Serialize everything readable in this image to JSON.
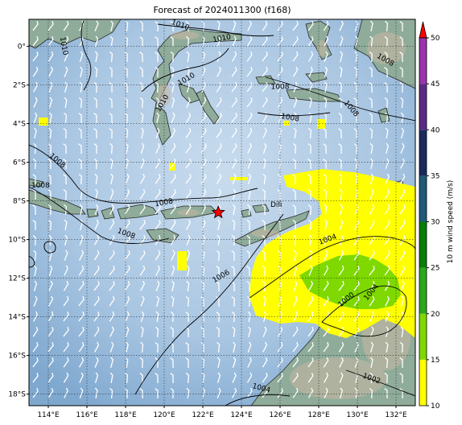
{
  "title": "Forecast of 2024011300 (f168)",
  "map": {
    "lon_min": 113,
    "lon_max": 133,
    "lat_min": -18.6,
    "lat_max": 1.4,
    "lon_ticks": [
      {
        "value": 114,
        "label": "114°E"
      },
      {
        "value": 116,
        "label": "116°E"
      },
      {
        "value": 118,
        "label": "118°E"
      },
      {
        "value": 120,
        "label": "120°E"
      },
      {
        "value": 122,
        "label": "122°E"
      },
      {
        "value": 124,
        "label": "124°E"
      },
      {
        "value": 126,
        "label": "126°E"
      },
      {
        "value": 128,
        "label": "128°E"
      },
      {
        "value": 130,
        "label": "130°E"
      },
      {
        "value": 132,
        "label": "132°E"
      }
    ],
    "lat_ticks": [
      {
        "value": 0,
        "label": "0°"
      },
      {
        "value": -2,
        "label": "2°S"
      },
      {
        "value": -4,
        "label": "4°S"
      },
      {
        "value": -6,
        "label": "6°S"
      },
      {
        "value": -8,
        "label": "8°S"
      },
      {
        "value": -10,
        "label": "10°S"
      },
      {
        "value": -12,
        "label": "12°S"
      },
      {
        "value": -14,
        "label": "14°S"
      },
      {
        "value": -16,
        "label": "16°S"
      },
      {
        "value": -18,
        "label": "18°S"
      }
    ],
    "marker": {
      "name": "star",
      "lon": 122.8,
      "lat": -8.6,
      "color": "#ff0000"
    },
    "place_labels": [
      {
        "text": "Dili",
        "lon": 125.5,
        "lat": -8.3
      }
    ],
    "contour_labels": [
      {
        "text": "1010",
        "lon": 114.7,
        "lat": 0.0,
        "rotate": 80
      },
      {
        "text": "1010",
        "lon": 120.8,
        "lat": 1.0,
        "rotate": 20
      },
      {
        "text": "1010",
        "lon": 123.0,
        "lat": 0.3,
        "rotate": -10
      },
      {
        "text": "1010",
        "lon": 121.2,
        "lat": -1.8,
        "rotate": -30
      },
      {
        "text": "1010",
        "lon": 120.0,
        "lat": -3.0,
        "rotate": -60
      },
      {
        "text": "1008",
        "lon": 131.4,
        "lat": -0.8,
        "rotate": 30
      },
      {
        "text": "1008",
        "lon": 126.0,
        "lat": -2.2,
        "rotate": 0
      },
      {
        "text": "1008",
        "lon": 126.5,
        "lat": -3.8,
        "rotate": 10
      },
      {
        "text": "1008",
        "lon": 129.6,
        "lat": -3.3,
        "rotate": 50
      },
      {
        "text": "1008",
        "lon": 114.4,
        "lat": -6.0,
        "rotate": 40
      },
      {
        "text": "1008",
        "lon": 113.6,
        "lat": -7.3,
        "rotate": 0
      },
      {
        "text": "1008",
        "lon": 120.0,
        "lat": -8.2,
        "rotate": -10
      },
      {
        "text": "1008",
        "lon": 118.0,
        "lat": -9.8,
        "rotate": 20
      },
      {
        "text": "1006",
        "lon": 123.0,
        "lat": -12.0,
        "rotate": -30
      },
      {
        "text": "1004",
        "lon": 128.5,
        "lat": -10.1,
        "rotate": -20
      },
      {
        "text": "1000",
        "lon": 129.5,
        "lat": -13.2,
        "rotate": -40
      },
      {
        "text": "1004",
        "lon": 130.8,
        "lat": -12.8,
        "rotate": -50
      },
      {
        "text": "1004",
        "lon": 125.0,
        "lat": -17.8,
        "rotate": 15
      },
      {
        "text": "1002",
        "lon": 130.7,
        "lat": -17.3,
        "rotate": 20
      }
    ]
  },
  "colorbar": {
    "label": "10 m wind speed (m/s)",
    "levels": [
      10,
      15,
      20,
      25,
      30,
      35,
      40,
      45,
      50
    ],
    "tick_labels": [
      "10",
      "15",
      "20",
      "25",
      "30",
      "35",
      "40",
      "45",
      "50"
    ],
    "colors": [
      "#ffff00",
      "#7fd900",
      "#2aa81a",
      "#0a7d0a",
      "#1f5a78",
      "#1b2a5e",
      "#5c2a85",
      "#9a34ad"
    ],
    "extend_color": "#ff0000"
  }
}
